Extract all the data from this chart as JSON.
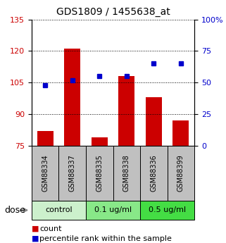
{
  "title": "GDS1809 / 1455638_at",
  "samples": [
    "GSM88334",
    "GSM88337",
    "GSM88335",
    "GSM88338",
    "GSM88336",
    "GSM88399"
  ],
  "count_values": [
    82,
    121,
    79,
    108,
    98,
    87
  ],
  "percentile_values": [
    48,
    52,
    55,
    55,
    65,
    65
  ],
  "bar_color": "#cc0000",
  "dot_color": "#0000cc",
  "ylim_left": [
    75,
    135
  ],
  "ylim_right": [
    0,
    100
  ],
  "yticks_left": [
    75,
    90,
    105,
    120,
    135
  ],
  "yticks_right": [
    0,
    25,
    50,
    75,
    100
  ],
  "ytick_labels_right": [
    "0",
    "25",
    "50",
    "75",
    "100%"
  ],
  "groups": [
    {
      "label": "control",
      "indices": [
        0,
        1
      ],
      "color": "#ccf0cc"
    },
    {
      "label": "0.1 ug/ml",
      "indices": [
        2,
        3
      ],
      "color": "#88e888"
    },
    {
      "label": "0.5 ug/ml",
      "indices": [
        4,
        5
      ],
      "color": "#44dd44"
    }
  ],
  "dose_label": "dose",
  "legend_count": "count",
  "legend_percentile": "percentile rank within the sample",
  "bar_width": 0.6,
  "tick_label_color_left": "#cc0000",
  "tick_label_color_right": "#0000cc",
  "sample_box_color": "#c0c0c0",
  "figsize": [
    3.21,
    3.45
  ],
  "dpi": 100
}
